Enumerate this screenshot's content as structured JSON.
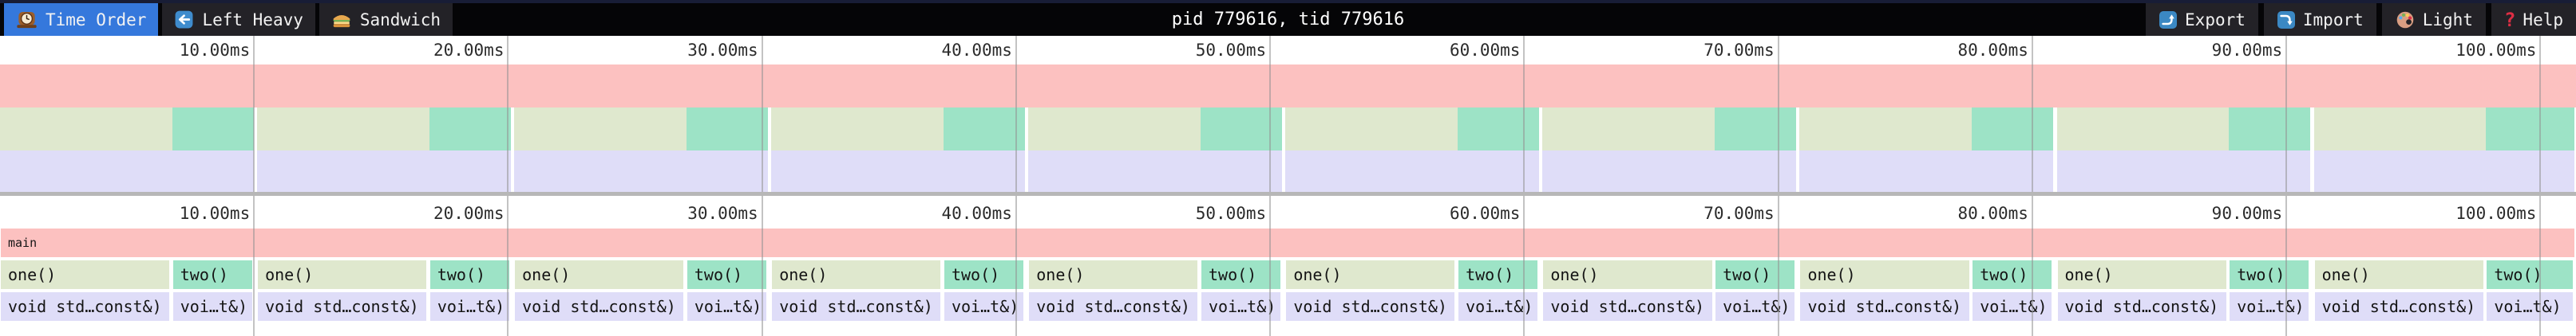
{
  "toolbar": {
    "tabs": [
      {
        "label": "Time Order",
        "icon": "clock-icon",
        "active": true
      },
      {
        "label": "Left Heavy",
        "icon": "left-arrow-icon",
        "active": false
      },
      {
        "label": "Sandwich",
        "icon": "sandwich-icon",
        "active": false
      }
    ],
    "title": "pid 779616, tid 779616",
    "buttons": [
      {
        "label": "Export",
        "icon": "export-icon"
      },
      {
        "label": "Import",
        "icon": "import-icon"
      },
      {
        "label": "Light",
        "icon": "palette-icon"
      },
      {
        "label": "Help",
        "icon": "help-icon"
      }
    ]
  },
  "colors": {
    "active_tab": "#3578dc",
    "toolbar_item_bg": "#232227",
    "frame_main": "#fcc1c0",
    "frame_one": "#dfe8ce",
    "frame_two": "#9de3c6",
    "frame_child": "#dfddf8",
    "gridline": "rgba(145,145,145,0.55)",
    "divider": "#b7b7b7"
  },
  "chart_data": {
    "type": "flamegraph",
    "time_unit": "ms",
    "total_duration_ms": 101.4,
    "ticks": [
      {
        "ms": 10,
        "label": "10.00ms"
      },
      {
        "ms": 20,
        "label": "20.00ms"
      },
      {
        "ms": 30,
        "label": "30.00ms"
      },
      {
        "ms": 40,
        "label": "40.00ms"
      },
      {
        "ms": 50,
        "label": "50.00ms"
      },
      {
        "ms": 60,
        "label": "60.00ms"
      },
      {
        "ms": 70,
        "label": "70.00ms"
      },
      {
        "ms": 80,
        "label": "80.00ms"
      },
      {
        "ms": 90,
        "label": "90.00ms"
      },
      {
        "ms": 100,
        "label": "100.00ms"
      }
    ],
    "root_frame": {
      "name": "main",
      "start_ms": 0,
      "end_ms": 101.4
    },
    "frame_labels": {
      "one": "one()",
      "two": "two()",
      "one_child": "void std…const&)",
      "two_child": "voi…t&)"
    },
    "cycles": [
      {
        "one": {
          "start_ms": 0.0,
          "end_ms": 6.73
        },
        "two": {
          "start_ms": 6.78,
          "end_ms": 9.98
        }
      },
      {
        "one": {
          "start_ms": 10.12,
          "end_ms": 16.85
        },
        "two": {
          "start_ms": 16.9,
          "end_ms": 20.1
        }
      },
      {
        "one": {
          "start_ms": 20.24,
          "end_ms": 26.97
        },
        "two": {
          "start_ms": 27.02,
          "end_ms": 30.22
        }
      },
      {
        "one": {
          "start_ms": 30.36,
          "end_ms": 37.09
        },
        "two": {
          "start_ms": 37.14,
          "end_ms": 40.34
        }
      },
      {
        "one": {
          "start_ms": 40.48,
          "end_ms": 47.21
        },
        "two": {
          "start_ms": 47.26,
          "end_ms": 50.46
        }
      },
      {
        "one": {
          "start_ms": 50.6,
          "end_ms": 57.33
        },
        "two": {
          "start_ms": 57.38,
          "end_ms": 60.58
        }
      },
      {
        "one": {
          "start_ms": 60.72,
          "end_ms": 67.45
        },
        "two": {
          "start_ms": 67.5,
          "end_ms": 70.7
        }
      },
      {
        "one": {
          "start_ms": 70.84,
          "end_ms": 77.57
        },
        "two": {
          "start_ms": 77.62,
          "end_ms": 80.82
        }
      },
      {
        "one": {
          "start_ms": 80.96,
          "end_ms": 87.69
        },
        "two": {
          "start_ms": 87.74,
          "end_ms": 90.94
        }
      },
      {
        "one": {
          "start_ms": 91.08,
          "end_ms": 97.81
        },
        "two": {
          "start_ms": 97.86,
          "end_ms": 101.35
        }
      }
    ],
    "layout_hints": {
      "minimap_rows": 3,
      "flamechart_rows": 3,
      "grid": true
    }
  }
}
